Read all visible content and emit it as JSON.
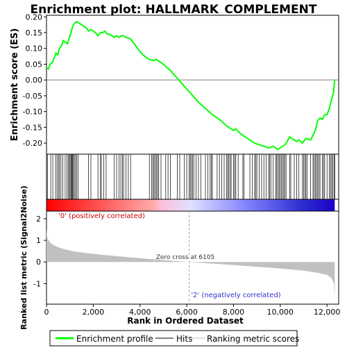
{
  "chart_data": {
    "type": "line",
    "title": "Enrichment plot: HALLMARK_COMPLEMENT",
    "xlabel": "Rank in Ordered Dataset",
    "xlim": [
      0,
      12500
    ],
    "x_ticks": [
      0,
      2000,
      4000,
      6000,
      8000,
      10000,
      12000
    ],
    "x_tick_labels": [
      "0",
      "2,000",
      "4,000",
      "6,000",
      "8,000",
      "10,000",
      "12,000"
    ],
    "es_panel": {
      "ylabel": "Enrichment score (ES)",
      "ylim": [
        -0.235,
        0.205
      ],
      "y_ticks": [
        0.2,
        0.15,
        0.1,
        0.05,
        0.0,
        -0.05,
        -0.1,
        -0.15,
        -0.2
      ],
      "y_tick_labels": [
        "0.20",
        "0.15",
        "0.10",
        "0.05",
        "0.00",
        "-0.05",
        "-0.10",
        "-0.15",
        "-0.20"
      ],
      "series_name": "Enrichment profile",
      "color": "#00ff00",
      "points": [
        [
          0,
          0.04
        ],
        [
          80,
          0.035
        ],
        [
          150,
          0.05
        ],
        [
          250,
          0.055
        ],
        [
          330,
          0.07
        ],
        [
          400,
          0.085
        ],
        [
          480,
          0.08
        ],
        [
          550,
          0.1
        ],
        [
          650,
          0.11
        ],
        [
          720,
          0.125
        ],
        [
          800,
          0.12
        ],
        [
          900,
          0.115
        ],
        [
          980,
          0.135
        ],
        [
          1050,
          0.15
        ],
        [
          1120,
          0.17
        ],
        [
          1200,
          0.18
        ],
        [
          1300,
          0.185
        ],
        [
          1400,
          0.18
        ],
        [
          1500,
          0.175
        ],
        [
          1600,
          0.17
        ],
        [
          1700,
          0.165
        ],
        [
          1800,
          0.155
        ],
        [
          1900,
          0.16
        ],
        [
          2000,
          0.155
        ],
        [
          2100,
          0.15
        ],
        [
          2200,
          0.14
        ],
        [
          2300,
          0.15
        ],
        [
          2400,
          0.15
        ],
        [
          2500,
          0.155
        ],
        [
          2600,
          0.145
        ],
        [
          2700,
          0.145
        ],
        [
          2800,
          0.14
        ],
        [
          2900,
          0.135
        ],
        [
          3000,
          0.14
        ],
        [
          3100,
          0.135
        ],
        [
          3200,
          0.14
        ],
        [
          3300,
          0.14
        ],
        [
          3400,
          0.135
        ],
        [
          3600,
          0.13
        ],
        [
          3800,
          0.11
        ],
        [
          4000,
          0.09
        ],
        [
          4200,
          0.075
        ],
        [
          4400,
          0.065
        ],
        [
          4600,
          0.062
        ],
        [
          4700,
          0.065
        ],
        [
          4800,
          0.06
        ],
        [
          5000,
          0.05
        ],
        [
          5300,
          0.03
        ],
        [
          5600,
          0.005
        ],
        [
          5900,
          -0.02
        ],
        [
          6200,
          -0.045
        ],
        [
          6500,
          -0.07
        ],
        [
          6800,
          -0.09
        ],
        [
          7100,
          -0.11
        ],
        [
          7400,
          -0.125
        ],
        [
          7700,
          -0.145
        ],
        [
          8000,
          -0.16
        ],
        [
          8100,
          -0.155
        ],
        [
          8300,
          -0.17
        ],
        [
          8600,
          -0.185
        ],
        [
          8900,
          -0.2
        ],
        [
          9100,
          -0.205
        ],
        [
          9300,
          -0.21
        ],
        [
          9500,
          -0.215
        ],
        [
          9700,
          -0.21
        ],
        [
          9900,
          -0.22
        ],
        [
          10100,
          -0.21
        ],
        [
          10200,
          -0.205
        ],
        [
          10300,
          -0.195
        ],
        [
          10400,
          -0.18
        ],
        [
          10500,
          -0.185
        ],
        [
          10700,
          -0.195
        ],
        [
          10800,
          -0.19
        ],
        [
          10950,
          -0.2
        ],
        [
          11100,
          -0.185
        ],
        [
          11300,
          -0.19
        ],
        [
          11400,
          -0.175
        ],
        [
          11500,
          -0.16
        ],
        [
          11600,
          -0.13
        ],
        [
          11700,
          -0.12
        ],
        [
          11800,
          -0.125
        ],
        [
          11900,
          -0.11
        ],
        [
          12000,
          -0.11
        ],
        [
          12100,
          -0.09
        ],
        [
          12200,
          -0.06
        ],
        [
          12280,
          -0.04
        ],
        [
          12330,
          0.002
        ]
      ]
    },
    "hits_panel": {
      "series_name": "Hits",
      "hit_positions": [
        40,
        180,
        270,
        390,
        450,
        510,
        560,
        620,
        700,
        800,
        880,
        930,
        980,
        1010,
        1050,
        1080,
        1110,
        1150,
        1190,
        1240,
        1290,
        1350,
        1800,
        1900,
        2200,
        2300,
        2350,
        2450,
        2550,
        2900,
        3000,
        3100,
        3180,
        3250,
        3300,
        3400,
        3500,
        3600,
        4400,
        4500,
        4550,
        4600,
        4650,
        4700,
        4750,
        4800,
        4900,
        5100,
        5200,
        5300,
        5600,
        5700,
        5900,
        6000,
        6100,
        6150,
        6200,
        6250,
        6300,
        6400,
        6500,
        6600,
        6800,
        6900,
        7000,
        7050,
        7100,
        7300,
        7400,
        7500,
        7600,
        7700,
        7750,
        7800,
        7850,
        7900,
        8000,
        8050,
        8100,
        8200,
        8400,
        8450,
        8700,
        8800,
        8900,
        8950,
        9000,
        9100,
        9200,
        9300,
        9400,
        9500,
        9550,
        9600,
        9700,
        9800,
        9850,
        9900,
        9950,
        10000,
        10050,
        10100,
        10150,
        10200,
        10250,
        10400,
        10450,
        10600,
        10700,
        10800,
        10950,
        11000,
        11050,
        11100,
        11150,
        11300,
        11400,
        11450,
        11500,
        11550,
        11600,
        11650,
        11700,
        11800,
        11850,
        11900,
        12000,
        12100,
        12150,
        12200,
        12250,
        12300,
        12330
      ],
      "gradient_colors": [
        "#ff0000",
        "#ffaaaa",
        "#ffc0e0",
        "#e0e0ff",
        "#8080ff",
        "#3030d0",
        "#1a00c8"
      ]
    },
    "metric_panel": {
      "ylabel": "Ranked list metric (Signal2Noise)",
      "ylim": [
        -1.95,
        2.35
      ],
      "y_ticks": [
        2,
        1,
        0,
        -1
      ],
      "y_tick_labels": [
        "2",
        "1",
        "0",
        "-1"
      ],
      "series_name": "Ranking metric scores",
      "fill_color": "#c0c0c0",
      "points": [
        [
          0,
          1.55
        ],
        [
          20,
          1.2
        ],
        [
          60,
          1.05
        ],
        [
          150,
          0.9
        ],
        [
          300,
          0.78
        ],
        [
          500,
          0.68
        ],
        [
          800,
          0.58
        ],
        [
          1200,
          0.48
        ],
        [
          1800,
          0.4
        ],
        [
          2500,
          0.32
        ],
        [
          3500,
          0.22
        ],
        [
          4500,
          0.13
        ],
        [
          5500,
          0.05
        ],
        [
          6105,
          0.0
        ],
        [
          7000,
          -0.07
        ],
        [
          8000,
          -0.14
        ],
        [
          9000,
          -0.22
        ],
        [
          10000,
          -0.3
        ],
        [
          11000,
          -0.4
        ],
        [
          11600,
          -0.5
        ],
        [
          12000,
          -0.6
        ],
        [
          12200,
          -0.75
        ],
        [
          12300,
          -1.0
        ],
        [
          12330,
          -1.7
        ]
      ],
      "zero_cross_rank": 6105,
      "zero_cross_label": "Zero cross at 6105",
      "pos_label": "'0' (positively correlated)",
      "neg_label": "'2' (negatively correlated)"
    },
    "legend": {
      "placement": "bottom",
      "entries": [
        {
          "label": "Enrichment profile",
          "color": "#00ff00"
        },
        {
          "label": "Hits",
          "color": "#000000"
        },
        {
          "label": "Ranking metric scores",
          "color": "#c0c0c0"
        }
      ]
    },
    "grid": false
  }
}
